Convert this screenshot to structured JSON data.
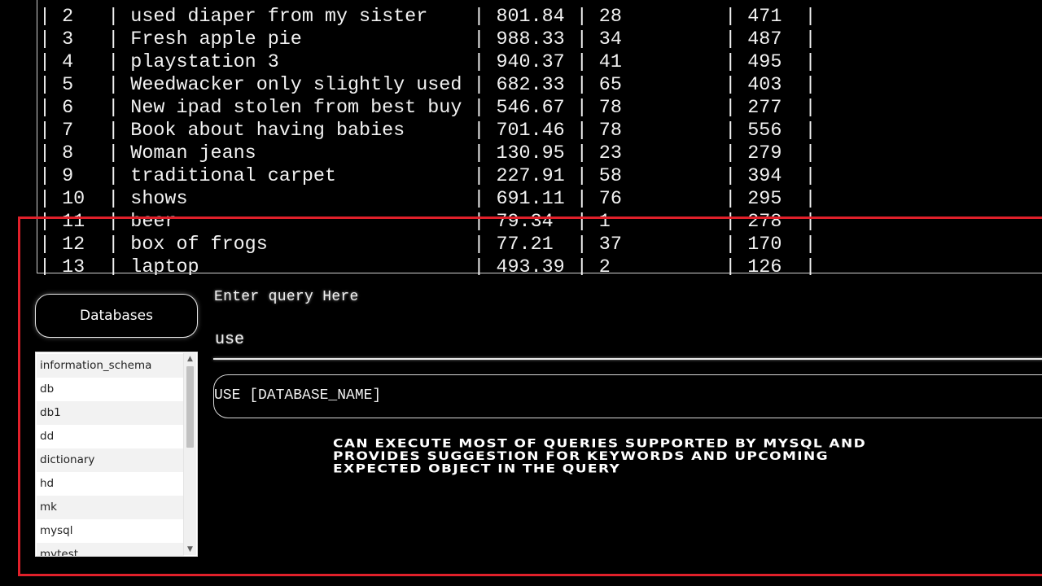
{
  "results": {
    "rows": [
      "| 2   | used diaper from my sister    | 801.84 | 28         | 471  |",
      "| 3   | Fresh apple pie               | 988.33 | 34         | 487  |",
      "| 4   | playstation 3                 | 940.37 | 41         | 495  |",
      "| 5   | Weedwacker only slightly used | 682.33 | 65         | 403  |",
      "| 6   | New ipad stolen from best buy | 546.67 | 78         | 277  |",
      "| 7   | Book about having babies      | 701.46 | 78         | 556  |",
      "| 8   | Woman jeans                   | 130.95 | 23         | 279  |",
      "| 9   | traditional carpet            | 227.91 | 58         | 394  |",
      "| 10  | shows                         | 691.11 | 76         | 295  |",
      "| 11  | beer                          | 79.34  | 1          | 278  |",
      "| 12  | box of frogs                  | 77.21  | 37         | 170  |",
      "| 13  | laptop                        | 493.39 | 2          | 126  |"
    ]
  },
  "databases": {
    "button_label": "Databases",
    "items": [
      "information_schema",
      "db",
      "db1",
      "dd",
      "dictionary",
      "hd",
      "mk",
      "mysql",
      "mytest"
    ]
  },
  "query": {
    "label": "Enter query Here",
    "value": "use",
    "suggestion": "USE [DATABASE_NAME]"
  },
  "caption": {
    "line1": "Can execute most of queries supported by MySQL and",
    "line2": "provides suggestion for keywords and upcoming",
    "line3": "expected object in the query"
  },
  "colors": {
    "highlight_border": "#e0202a",
    "background": "#000000"
  }
}
